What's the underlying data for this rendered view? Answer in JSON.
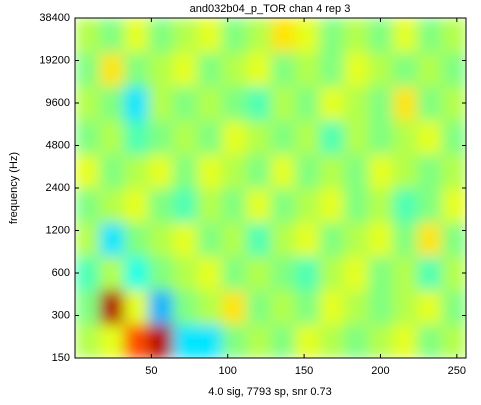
{
  "chart_data": {
    "type": "heatmap",
    "title": "and032b04_p_TOR chan 4 rep 3",
    "x_label": "4.0 sig, 7793 sp, snr 0.73",
    "y_label": "frequency (Hz)",
    "xlim": [
      0,
      256
    ],
    "xticks": [
      50,
      100,
      150,
      200,
      250
    ],
    "ylim": [
      150,
      38400
    ],
    "y_scale": "log",
    "yticks": [
      150,
      300,
      600,
      1200,
      2400,
      4800,
      9600,
      19200,
      38400
    ],
    "colormap": "jet",
    "clim": [
      -1,
      1
    ],
    "values": [
      [
        0.1,
        0.2,
        0.6,
        0.9,
        -0.3,
        -0.3,
        0.0,
        0.1,
        0.0,
        0.2,
        0.1,
        0.0,
        0.1,
        0.2,
        0.0,
        0.1
      ],
      [
        0.0,
        0.9,
        0.2,
        -0.4,
        0.0,
        0.1,
        0.3,
        0.0,
        0.1,
        0.0,
        0.2,
        0.1,
        0.0,
        0.1,
        0.2,
        0.0
      ],
      [
        -0.1,
        0.1,
        -0.2,
        0.0,
        0.1,
        0.2,
        0.0,
        0.1,
        0.0,
        -0.1,
        0.1,
        0.2,
        0.0,
        0.1,
        -0.1,
        0.1
      ],
      [
        0.1,
        -0.3,
        0.0,
        0.1,
        0.2,
        0.0,
        0.1,
        -0.1,
        0.1,
        0.2,
        0.0,
        0.1,
        0.2,
        0.0,
        0.3,
        0.0
      ],
      [
        0.0,
        0.1,
        0.2,
        0.0,
        -0.1,
        0.1,
        0.0,
        0.2,
        0.0,
        0.1,
        0.2,
        0.0,
        0.1,
        -0.1,
        0.0,
        0.2
      ],
      [
        0.2,
        0.0,
        0.1,
        0.2,
        0.0,
        0.2,
        0.1,
        0.0,
        0.2,
        0.0,
        0.1,
        0.0,
        0.2,
        0.1,
        0.0,
        0.1
      ],
      [
        0.0,
        0.1,
        -0.1,
        0.0,
        0.1,
        0.0,
        0.2,
        0.1,
        0.0,
        0.1,
        -0.1,
        0.1,
        0.0,
        0.1,
        0.2,
        0.0
      ],
      [
        0.1,
        0.0,
        -0.3,
        0.1,
        0.0,
        0.1,
        0.0,
        -0.1,
        0.1,
        0.0,
        0.2,
        0.1,
        0.0,
        0.3,
        0.0,
        0.1
      ],
      [
        0.0,
        0.3,
        0.0,
        0.1,
        0.2,
        0.0,
        0.1,
        0.2,
        0.0,
        0.1,
        0.0,
        0.2,
        0.1,
        0.0,
        0.1,
        0.0
      ],
      [
        0.1,
        0.0,
        0.2,
        0.0,
        0.1,
        0.2,
        0.0,
        0.1,
        0.3,
        0.2,
        0.0,
        0.1,
        0.0,
        0.2,
        0.0,
        0.1
      ]
    ]
  }
}
